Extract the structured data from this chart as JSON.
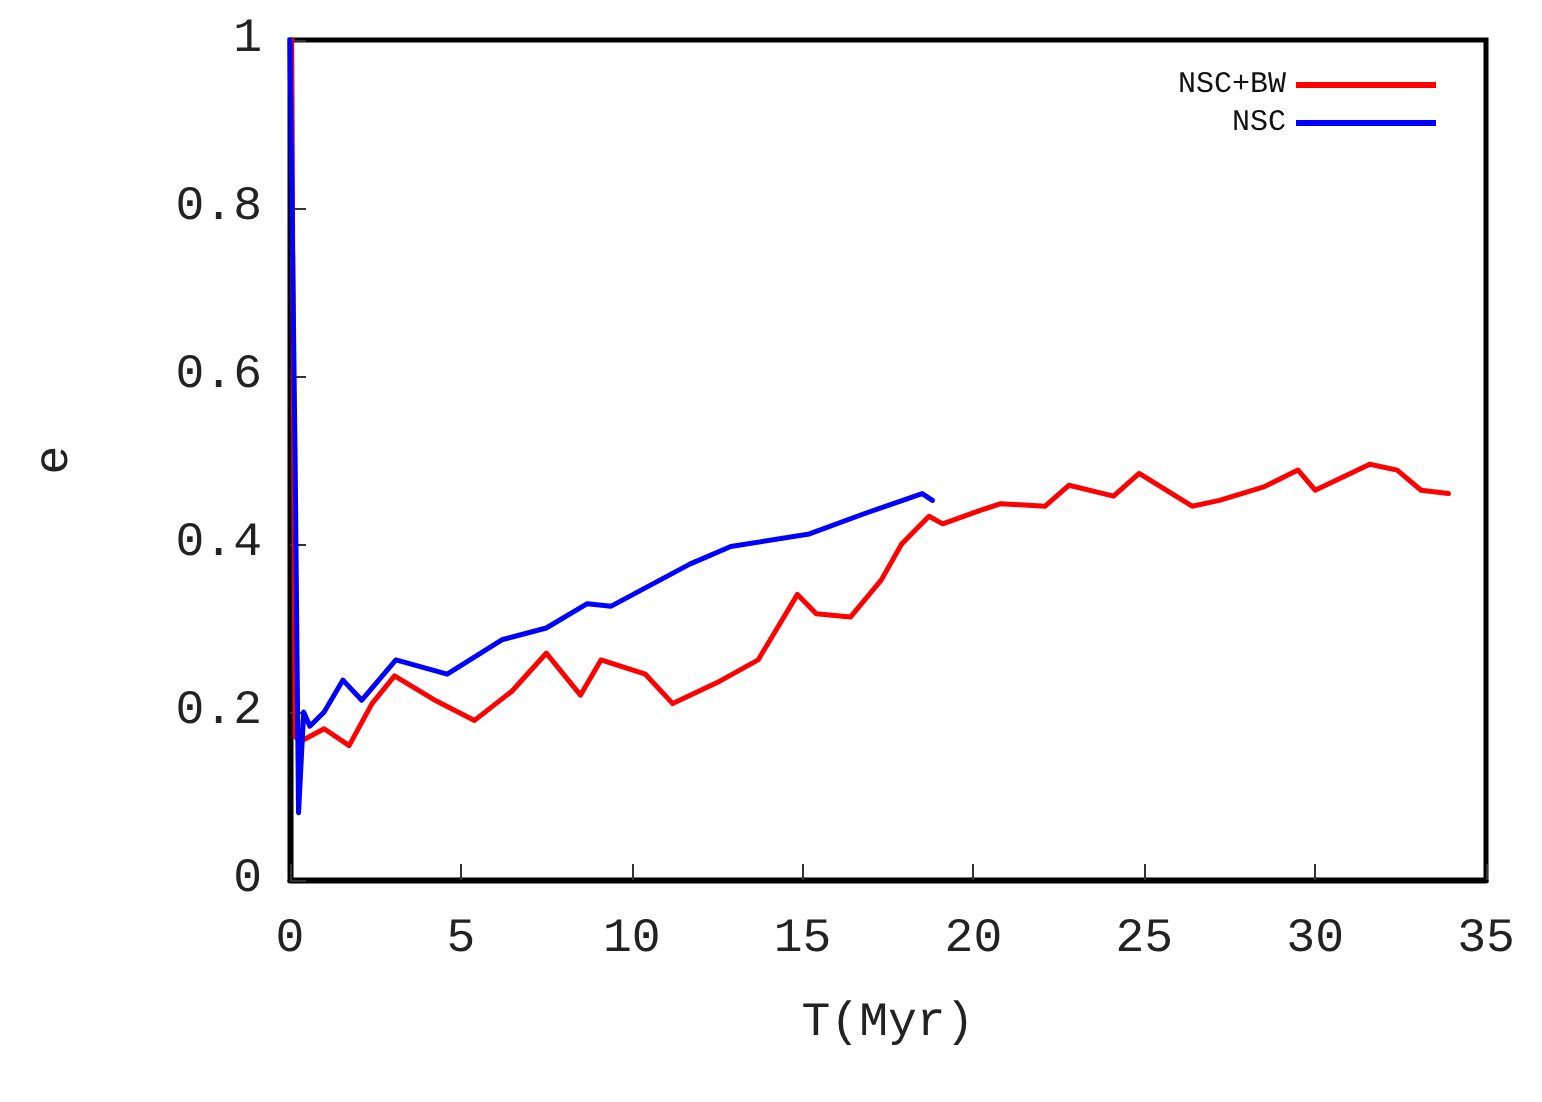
{
  "chart_data": {
    "type": "line",
    "xlabel": "T(Myr)",
    "ylabel": "e",
    "xlim": [
      0,
      35
    ],
    "xticks": [
      0,
      5,
      10,
      15,
      20,
      25,
      30,
      35
    ],
    "ylim": [
      0,
      1
    ],
    "yticks": [
      0,
      0.2,
      0.4,
      0.6,
      0.8,
      1
    ],
    "grid": false,
    "legend": "top right",
    "marker": "none",
    "line_style": "solid",
    "series": [
      {
        "name": "NSC+BW",
        "color": "#ff0000",
        "x": [
          0.05,
          0.15,
          0.4,
          1.0,
          1.73,
          2.4,
          3.06,
          4.2,
          5.4,
          6.5,
          7.5,
          8.5,
          9.1,
          10.4,
          11.2,
          12.5,
          13.7,
          14.85,
          15.4,
          16.4,
          17.3,
          17.9,
          18.7,
          19.1,
          20.2,
          20.8,
          22.1,
          22.8,
          24.1,
          24.85,
          26.4,
          27.2,
          28.5,
          29.5,
          30.0,
          31.6,
          32.4,
          33.1,
          33.9
        ],
        "values": [
          1.0,
          0.17,
          0.167,
          0.18,
          0.16,
          0.21,
          0.243,
          0.215,
          0.19,
          0.225,
          0.27,
          0.22,
          0.262,
          0.245,
          0.21,
          0.235,
          0.262,
          0.34,
          0.317,
          0.313,
          0.357,
          0.4,
          0.433,
          0.424,
          0.44,
          0.448,
          0.445,
          0.47,
          0.457,
          0.484,
          0.445,
          0.452,
          0.468,
          0.488,
          0.464,
          0.495,
          0.488,
          0.464,
          0.46
        ]
      },
      {
        "name": "NSC",
        "color": "#0000ff",
        "x": [
          0.0,
          0.15,
          0.25,
          0.4,
          0.58,
          1.0,
          1.55,
          2.1,
          3.1,
          4.6,
          6.2,
          7.5,
          8.7,
          9.4,
          11.7,
          12.9,
          15.2,
          16.8,
          18.5,
          18.8
        ],
        "values": [
          1.0,
          0.5,
          0.08,
          0.2,
          0.183,
          0.2,
          0.238,
          0.214,
          0.262,
          0.245,
          0.286,
          0.3,
          0.329,
          0.326,
          0.376,
          0.397,
          0.412,
          0.436,
          0.46,
          0.452
        ]
      }
    ]
  }
}
